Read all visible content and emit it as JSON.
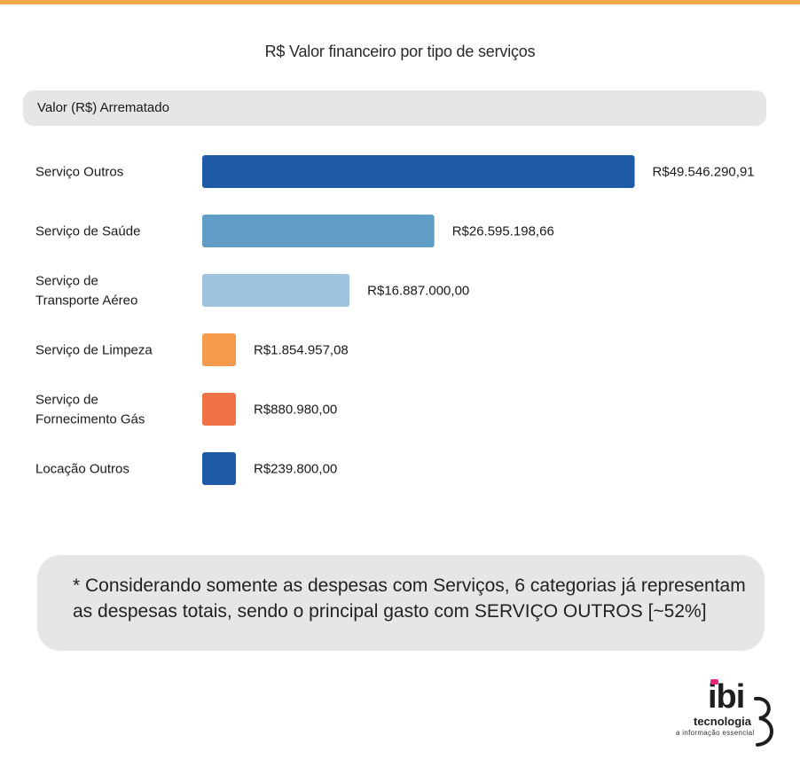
{
  "chart_data": {
    "type": "bar",
    "orientation": "horizontal",
    "title": "R$ Valor financeiro por tipo de serviços",
    "header_label": "Valor (R$) Arrematado",
    "categories": [
      [
        "Serviço Outros"
      ],
      [
        "Serviço de Saúde"
      ],
      [
        "Serviço de",
        "Transporte Aéreo"
      ],
      [
        "Serviço de Limpeza"
      ],
      [
        "Serviço de",
        "Fornecimento Gás"
      ],
      [
        "Locação Outros"
      ]
    ],
    "values": [
      49546290.91,
      26595198.66,
      16887000.0,
      1854957.08,
      880980.0,
      239800.0
    ],
    "value_labels": [
      "R$49.546.290,91",
      "R$26.595.198,66",
      "R$16.887.000,00",
      "R$1.854.957,08",
      "R$880.980,00",
      "R$239.800,00"
    ],
    "colors": [
      "#1f5aa6",
      "#5f9dc6",
      "#9ec3de",
      "#f49a4a",
      "#ef7246",
      "#1f5aa6"
    ],
    "xlim": [
      0,
      50000000
    ],
    "grid": false,
    "legend": "none"
  },
  "note": "* Considerando somente as despesas com Serviços, 6 categorias já representam as despesas totais, sendo o principal gasto com SERVIÇO OUTROS [~52%]",
  "logo": {
    "name": "ibi",
    "subtitle": "tecnologia",
    "tagline": "a informação essencial",
    "accent_color": "#e4267a"
  }
}
